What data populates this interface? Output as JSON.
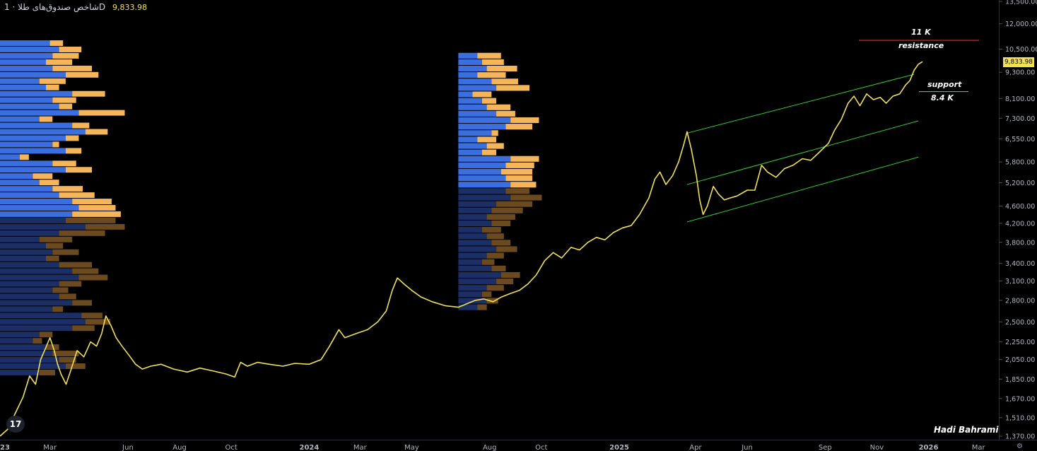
{
  "header": {
    "title": "شاخص صندوق‌های طلا",
    "interval": "1D",
    "separator": "·",
    "price": "9,833.98"
  },
  "last_price_label": "9,833.98",
  "author": "Hadi Bahrami",
  "logo_text": "17",
  "settings_icon": "gear-icon",
  "annotations": {
    "resistance_value": "11 K",
    "resistance_label": "resistance",
    "support_label": "support",
    "support_value": "8.4 K"
  },
  "colors": {
    "background": "#000000",
    "price_line": "#f0e05a",
    "resistance_line": "#e03030",
    "support_line": "#3ccf3c",
    "channel": "#33cc33",
    "vp_up": "#3b6fe0",
    "vp_down": "#f5b55a",
    "vp_up_dim": "#1b2e66",
    "vp_down_dim": "#6a4a1e"
  },
  "chart_data": {
    "type": "line",
    "title": "",
    "yscale": "log",
    "ylim": [
      1370,
      13500
    ],
    "y_ticks": [
      "1,370.00",
      "1,510.00",
      "1,670.00",
      "1,850.00",
      "2,050.00",
      "2,250.00",
      "2,500.00",
      "2,800.00",
      "3,100.00",
      "3,400.00",
      "3,800.00",
      "4,200.00",
      "4,600.00",
      "5,200.00",
      "5,800.00",
      "6,550.00",
      "7,300.00",
      "8,100.00",
      "9,300.00",
      "10,500.00",
      "12,000.00",
      "13,500.00"
    ],
    "x_ticks": [
      "2023",
      "Mar",
      "Jun",
      "Aug",
      "Oct",
      "2024",
      "Mar",
      "May",
      "Aug",
      "Oct",
      "2025",
      "Apr",
      "Jun",
      "Sep",
      "Nov",
      "2026",
      "Mar"
    ],
    "xlim": [
      "2023-01-01",
      "2026-03-25"
    ],
    "series": [
      {
        "points": [
          [
            "2023-01-01",
            1370
          ],
          [
            "2023-01-10",
            1420
          ],
          [
            "2023-01-20",
            1560
          ],
          [
            "2023-01-28",
            1680
          ],
          [
            "2023-02-05",
            1880
          ],
          [
            "2023-02-12",
            1800
          ],
          [
            "2023-02-18",
            2050
          ],
          [
            "2023-02-24",
            2180
          ],
          [
            "2023-03-01",
            2300
          ],
          [
            "2023-03-06",
            2150
          ],
          [
            "2023-03-10",
            2000
          ],
          [
            "2023-03-14",
            1900
          ],
          [
            "2023-03-20",
            1800
          ],
          [
            "2023-03-26",
            1950
          ],
          [
            "2023-04-02",
            2150
          ],
          [
            "2023-04-10",
            2080
          ],
          [
            "2023-04-18",
            2250
          ],
          [
            "2023-04-25",
            2200
          ],
          [
            "2023-05-01",
            2350
          ],
          [
            "2023-05-06",
            2580
          ],
          [
            "2023-05-12",
            2450
          ],
          [
            "2023-05-18",
            2300
          ],
          [
            "2023-05-25",
            2200
          ],
          [
            "2023-06-02",
            2100
          ],
          [
            "2023-06-10",
            2000
          ],
          [
            "2023-06-18",
            1950
          ],
          [
            "2023-06-28",
            1980
          ],
          [
            "2023-07-10",
            2000
          ],
          [
            "2023-07-25",
            1950
          ],
          [
            "2023-08-10",
            1920
          ],
          [
            "2023-08-25",
            1960
          ],
          [
            "2023-09-10",
            1930
          ],
          [
            "2023-09-25",
            1900
          ],
          [
            "2023-10-05",
            1870
          ],
          [
            "2023-10-12",
            2020
          ],
          [
            "2023-10-20",
            1980
          ],
          [
            "2023-11-01",
            2020
          ],
          [
            "2023-11-15",
            2000
          ],
          [
            "2023-12-01",
            1980
          ],
          [
            "2023-12-15",
            2010
          ],
          [
            "2024-01-01",
            2000
          ],
          [
            "2024-01-15",
            2050
          ],
          [
            "2024-01-25",
            2200
          ],
          [
            "2024-02-05",
            2400
          ],
          [
            "2024-02-12",
            2300
          ],
          [
            "2024-02-25",
            2350
          ],
          [
            "2024-03-10",
            2400
          ],
          [
            "2024-03-22",
            2500
          ],
          [
            "2024-04-01",
            2650
          ],
          [
            "2024-04-08",
            2950
          ],
          [
            "2024-04-14",
            3150
          ],
          [
            "2024-04-22",
            3050
          ],
          [
            "2024-05-01",
            2950
          ],
          [
            "2024-05-12",
            2850
          ],
          [
            "2024-05-25",
            2780
          ],
          [
            "2024-06-10",
            2720
          ],
          [
            "2024-06-25",
            2700
          ],
          [
            "2024-07-05",
            2750
          ],
          [
            "2024-07-15",
            2800
          ],
          [
            "2024-07-25",
            2820
          ],
          [
            "2024-08-05",
            2780
          ],
          [
            "2024-08-15",
            2850
          ],
          [
            "2024-08-25",
            2900
          ],
          [
            "2024-09-05",
            2950
          ],
          [
            "2024-09-15",
            3050
          ],
          [
            "2024-09-25",
            3200
          ],
          [
            "2024-10-05",
            3450
          ],
          [
            "2024-10-15",
            3600
          ],
          [
            "2024-10-25",
            3500
          ],
          [
            "2024-11-05",
            3700
          ],
          [
            "2024-11-15",
            3650
          ],
          [
            "2024-11-25",
            3800
          ],
          [
            "2024-12-05",
            3900
          ],
          [
            "2024-12-15",
            3850
          ],
          [
            "2024-12-25",
            4000
          ],
          [
            "2025-01-05",
            4100
          ],
          [
            "2025-01-15",
            4150
          ],
          [
            "2025-01-25",
            4400
          ],
          [
            "2025-02-05",
            4800
          ],
          [
            "2025-02-12",
            5300
          ],
          [
            "2025-02-18",
            5500
          ],
          [
            "2025-02-25",
            5150
          ],
          [
            "2025-03-05",
            5400
          ],
          [
            "2025-03-12",
            5800
          ],
          [
            "2025-03-18",
            6350
          ],
          [
            "2025-03-22",
            6800
          ],
          [
            "2025-03-27",
            6200
          ],
          [
            "2025-04-02",
            5400
          ],
          [
            "2025-04-06",
            4750
          ],
          [
            "2025-04-10",
            4400
          ],
          [
            "2025-04-15",
            4600
          ],
          [
            "2025-04-22",
            5100
          ],
          [
            "2025-04-28",
            4900
          ],
          [
            "2025-05-05",
            4750
          ],
          [
            "2025-05-12",
            4800
          ],
          [
            "2025-05-20",
            4850
          ],
          [
            "2025-06-01",
            5000
          ],
          [
            "2025-06-10",
            5000
          ],
          [
            "2025-06-18",
            5700
          ],
          [
            "2025-06-25",
            5500
          ],
          [
            "2025-07-05",
            5350
          ],
          [
            "2025-07-15",
            5600
          ],
          [
            "2025-07-25",
            5700
          ],
          [
            "2025-08-05",
            5900
          ],
          [
            "2025-08-15",
            5850
          ],
          [
            "2025-08-25",
            6100
          ],
          [
            "2025-09-05",
            6400
          ],
          [
            "2025-09-12",
            6850
          ],
          [
            "2025-09-20",
            7250
          ],
          [
            "2025-09-28",
            7900
          ],
          [
            "2025-10-05",
            8200
          ],
          [
            "2025-10-12",
            7800
          ],
          [
            "2025-10-20",
            8300
          ],
          [
            "2025-10-28",
            8050
          ],
          [
            "2025-11-05",
            8150
          ],
          [
            "2025-11-12",
            7900
          ],
          [
            "2025-11-20",
            8200
          ],
          [
            "2025-11-28",
            8300
          ],
          [
            "2025-12-05",
            8700
          ],
          [
            "2025-12-10",
            8900
          ],
          [
            "2025-12-15",
            9400
          ],
          [
            "2025-12-20",
            9700
          ],
          [
            "2025-12-25",
            9834
          ]
        ]
      }
    ],
    "channel_lines": [
      {
        "from": [
          "2025-03-22",
          6750
        ],
        "to": [
          "2025-12-15",
          9200
        ]
      },
      {
        "from": [
          "2025-03-22",
          5150
        ],
        "to": [
          "2025-12-20",
          7200
        ]
      },
      {
        "from": [
          "2025-03-22",
          4230
        ],
        "to": [
          "2025-12-20",
          5950
        ]
      }
    ],
    "levels": [
      {
        "name": "resistance",
        "value": 11000
      },
      {
        "name": "support",
        "value": 8400
      }
    ],
    "volume_profiles": [
      {
        "start": "2023-01-01",
        "end": "2023-06-05",
        "price_low": 1880,
        "price_high": 11000,
        "rows": [
          [
            0.38,
            0.48
          ],
          [
            0.45,
            0.62
          ],
          [
            0.4,
            0.6
          ],
          [
            0.35,
            0.55
          ],
          [
            0.4,
            0.7
          ],
          [
            0.5,
            0.75
          ],
          [
            0.3,
            0.5
          ],
          [
            0.35,
            0.45
          ],
          [
            0.55,
            0.8
          ],
          [
            0.4,
            0.58
          ],
          [
            0.45,
            0.55
          ],
          [
            0.6,
            0.95
          ],
          [
            0.3,
            0.4
          ],
          [
            0.55,
            0.68
          ],
          [
            0.65,
            0.82
          ],
          [
            0.5,
            0.6
          ],
          [
            0.4,
            0.45
          ],
          [
            0.5,
            0.62
          ],
          [
            0.15,
            0.22
          ],
          [
            0.4,
            0.58
          ],
          [
            0.5,
            0.7
          ],
          [
            0.25,
            0.4
          ],
          [
            0.3,
            0.45
          ],
          [
            0.4,
            0.63
          ],
          [
            0.45,
            0.72
          ],
          [
            0.55,
            0.85
          ],
          [
            0.6,
            0.88
          ],
          [
            0.55,
            0.92
          ],
          [
            0.5,
            0.88
          ],
          [
            0.65,
            0.95
          ],
          [
            0.45,
            0.8
          ],
          [
            0.3,
            0.55
          ],
          [
            0.35,
            0.48
          ],
          [
            0.4,
            0.6
          ],
          [
            0.35,
            0.45
          ],
          [
            0.45,
            0.7
          ],
          [
            0.55,
            0.75
          ],
          [
            0.6,
            0.82
          ],
          [
            0.45,
            0.62
          ],
          [
            0.4,
            0.52
          ],
          [
            0.45,
            0.58
          ],
          [
            0.55,
            0.7
          ],
          [
            0.4,
            0.48
          ],
          [
            0.62,
            0.78
          ],
          [
            0.65,
            0.84
          ],
          [
            0.55,
            0.72
          ],
          [
            0.3,
            0.4
          ],
          [
            0.25,
            0.32
          ],
          [
            0.35,
            0.45
          ],
          [
            0.4,
            0.6
          ],
          [
            0.45,
            0.58
          ],
          [
            0.5,
            0.65
          ],
          [
            0.3,
            0.42
          ]
        ]
      },
      {
        "start": "2024-06-25",
        "end": "2024-10-15",
        "price_low": 2650,
        "price_high": 10300,
        "rows": [
          [
            0.2,
            0.45
          ],
          [
            0.25,
            0.48
          ],
          [
            0.3,
            0.62
          ],
          [
            0.2,
            0.5
          ],
          [
            0.35,
            0.63
          ],
          [
            0.4,
            0.75
          ],
          [
            0.15,
            0.35
          ],
          [
            0.25,
            0.4
          ],
          [
            0.3,
            0.55
          ],
          [
            0.4,
            0.6
          ],
          [
            0.55,
            0.85
          ],
          [
            0.5,
            0.78
          ],
          [
            0.35,
            0.42
          ],
          [
            0.2,
            0.4
          ],
          [
            0.3,
            0.48
          ],
          [
            0.25,
            0.4
          ],
          [
            0.55,
            0.85
          ],
          [
            0.5,
            0.8
          ],
          [
            0.45,
            0.78
          ],
          [
            0.5,
            0.78
          ],
          [
            0.55,
            0.82
          ],
          [
            0.5,
            0.75
          ],
          [
            0.55,
            0.88
          ],
          [
            0.4,
            0.78
          ],
          [
            0.35,
            0.68
          ],
          [
            0.3,
            0.6
          ],
          [
            0.35,
            0.55
          ],
          [
            0.25,
            0.45
          ],
          [
            0.3,
            0.48
          ],
          [
            0.35,
            0.55
          ],
          [
            0.4,
            0.62
          ],
          [
            0.3,
            0.48
          ],
          [
            0.25,
            0.38
          ],
          [
            0.35,
            0.5
          ],
          [
            0.45,
            0.65
          ],
          [
            0.4,
            0.58
          ],
          [
            0.3,
            0.48
          ],
          [
            0.25,
            0.35
          ],
          [
            0.3,
            0.42
          ],
          [
            0.2,
            0.3
          ]
        ]
      }
    ]
  }
}
